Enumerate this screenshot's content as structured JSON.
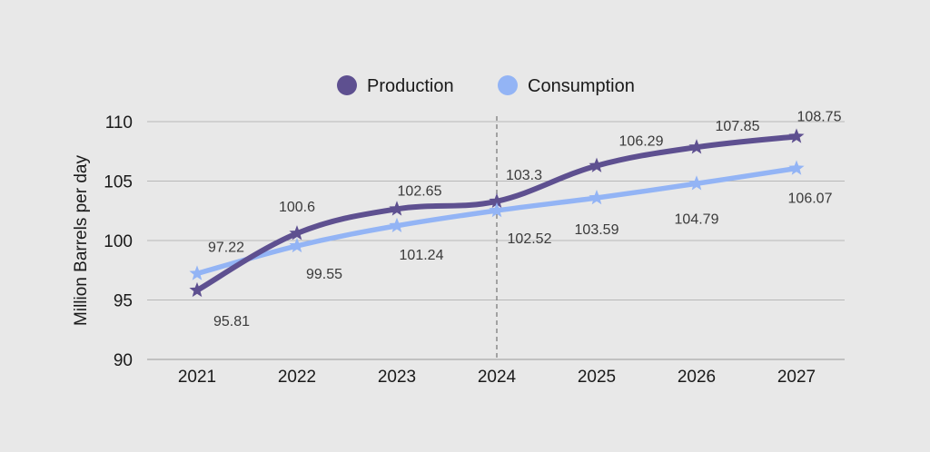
{
  "chart_data": {
    "type": "line",
    "categories": [
      "2021",
      "2022",
      "2023",
      "2024",
      "2025",
      "2026",
      "2027"
    ],
    "series": [
      {
        "name": "Production",
        "color": "#5e5090",
        "values": [
          95.81,
          100.6,
          102.65,
          103.3,
          106.29,
          107.85,
          108.75
        ]
      },
      {
        "name": "Consumption",
        "color": "#93b4f5",
        "values": [
          97.22,
          99.55,
          101.24,
          102.52,
          103.59,
          104.79,
          106.07
        ]
      }
    ],
    "ylabel": "Million Barrels per day",
    "ylim": [
      90,
      110
    ],
    "yticks": [
      90,
      95,
      100,
      105,
      110
    ],
    "grid": true,
    "legend": "top-center",
    "divider_category": "2024",
    "marker": "star"
  }
}
